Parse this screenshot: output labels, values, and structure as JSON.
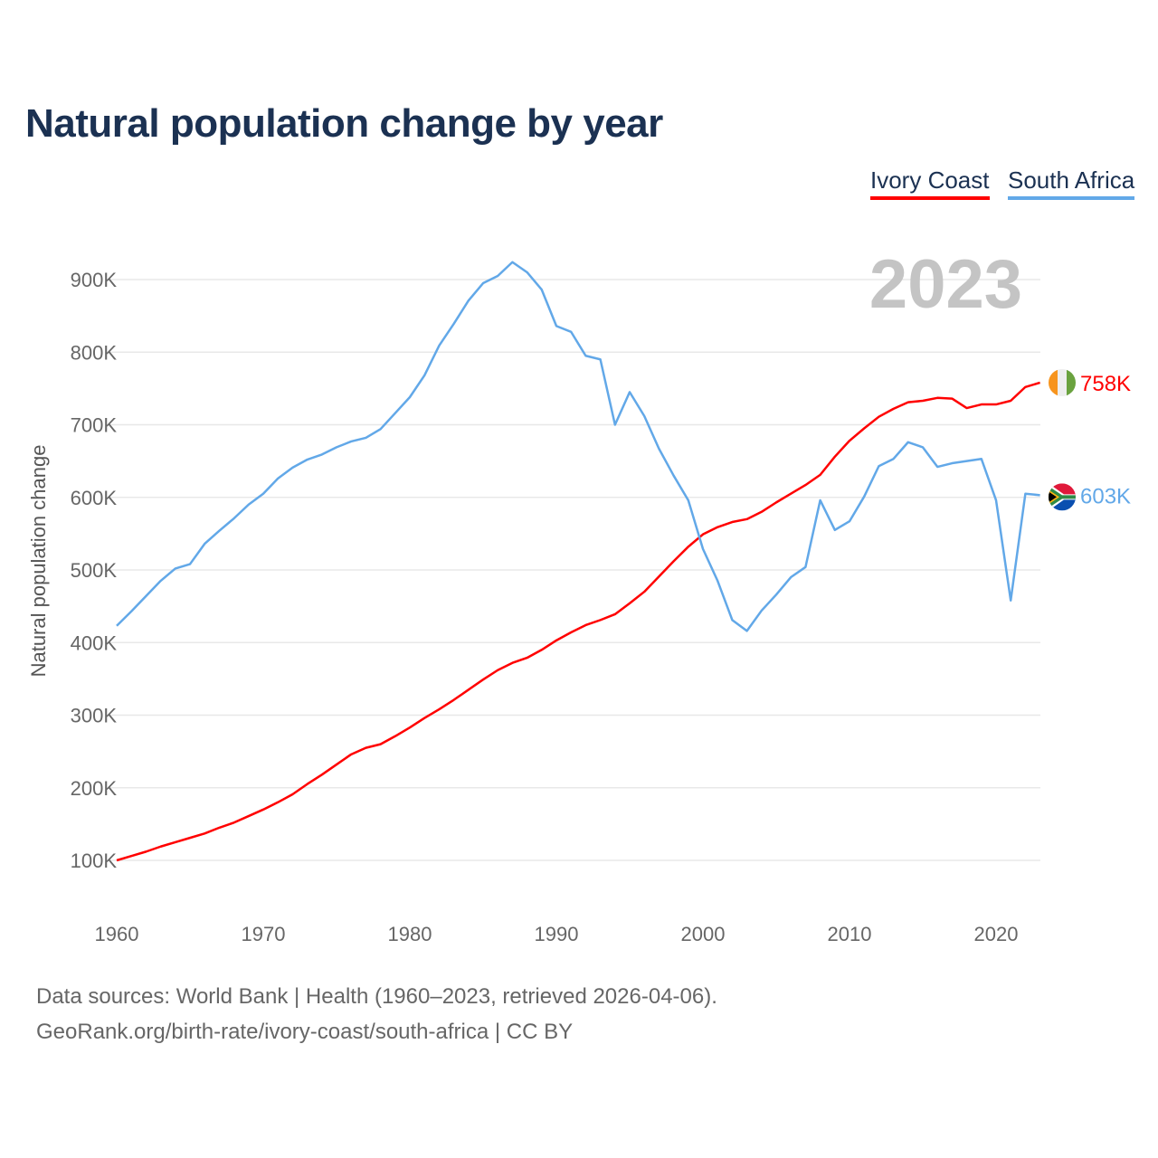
{
  "title": "Natural population change by year",
  "legend": [
    {
      "name": "Ivory Coast",
      "color": "#ff0000"
    },
    {
      "name": "South Africa",
      "color": "#62a8e8"
    }
  ],
  "year_label": "2023",
  "footer": {
    "line1": "Data sources: World Bank | Health (1960–2023, retrieved 2026-04-06).",
    "line2": "GeoRank.org/birth-rate/ivory-coast/south-africa | CC BY"
  },
  "chart_data": {
    "type": "line",
    "title": "Natural population change by year",
    "xlabel": "",
    "ylabel": "Natural population change",
    "xlim": [
      1960,
      2023
    ],
    "ylim": [
      100000,
      900000
    ],
    "x_ticks": [
      "1960",
      "1970",
      "1980",
      "1990",
      "2000",
      "2010",
      "2020"
    ],
    "y_ticks": [
      "100K",
      "200K",
      "300K",
      "400K",
      "500K",
      "600K",
      "700K",
      "800K",
      "900K"
    ],
    "grid": true,
    "legend_position": "top-right",
    "x": [
      1960,
      1961,
      1962,
      1963,
      1964,
      1965,
      1966,
      1967,
      1968,
      1969,
      1970,
      1971,
      1972,
      1973,
      1974,
      1975,
      1976,
      1977,
      1978,
      1979,
      1980,
      1981,
      1982,
      1983,
      1984,
      1985,
      1986,
      1987,
      1988,
      1989,
      1990,
      1991,
      1992,
      1993,
      1994,
      1995,
      1996,
      1997,
      1998,
      1999,
      2000,
      2001,
      2002,
      2003,
      2004,
      2005,
      2006,
      2007,
      2008,
      2009,
      2010,
      2011,
      2012,
      2013,
      2014,
      2015,
      2016,
      2017,
      2018,
      2019,
      2020,
      2021,
      2022,
      2023
    ],
    "series": [
      {
        "name": "Ivory Coast",
        "color": "#ff0000",
        "end_label": "758K",
        "values": [
          100000,
          106000,
          112000,
          119000,
          125000,
          131000,
          137000,
          145000,
          152000,
          161000,
          170000,
          180000,
          191000,
          205000,
          218000,
          232000,
          246000,
          255000,
          260000,
          271000,
          283000,
          296000,
          308000,
          321000,
          335000,
          349000,
          362000,
          372000,
          379000,
          390000,
          403000,
          414000,
          424000,
          431000,
          439000,
          454000,
          470000,
          491000,
          512000,
          532000,
          549000,
          559000,
          566000,
          570000,
          580000,
          593000,
          605000,
          617000,
          631000,
          656000,
          678000,
          695000,
          711000,
          722000,
          731000,
          733000,
          737000,
          736000,
          723000,
          728000,
          728000,
          733000,
          752000,
          758000
        ]
      },
      {
        "name": "South Africa",
        "color": "#62a8e8",
        "end_label": "603K",
        "values": [
          423000,
          443000,
          464000,
          485000,
          502000,
          508000,
          536000,
          554000,
          571000,
          590000,
          605000,
          626000,
          641000,
          652000,
          659000,
          669000,
          677000,
          682000,
          694000,
          716000,
          738000,
          768000,
          809000,
          839000,
          871000,
          895000,
          905000,
          924000,
          910000,
          886000,
          836000,
          828000,
          795000,
          790000,
          700000,
          745000,
          712000,
          667000,
          630000,
          596000,
          529000,
          485000,
          431000,
          416000,
          444000,
          466000,
          490000,
          504000,
          596000,
          555000,
          567000,
          601000,
          643000,
          653000,
          676000,
          669000,
          642000,
          647000,
          650000,
          653000,
          596000,
          458000,
          605000,
          603000
        ]
      }
    ]
  }
}
